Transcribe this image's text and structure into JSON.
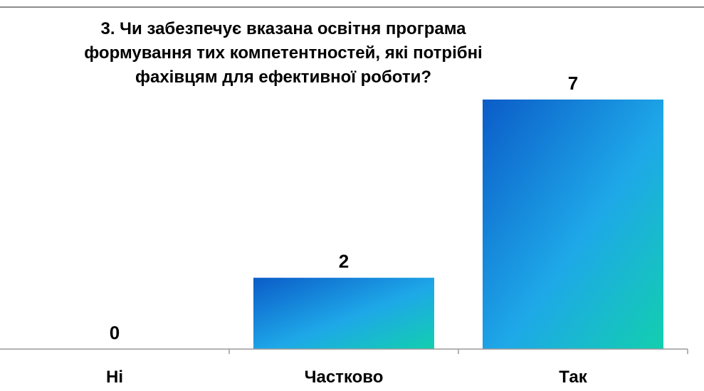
{
  "chart_data": {
    "type": "bar",
    "title_lines": [
      "3. Чи забезпечує  вказана  освітня  програма",
      "формування  тих компетентностей,  які  потрібні",
      "фахівцям  для  ефективної  роботи?"
    ],
    "categories": [
      "Ні",
      "Частково",
      "Так"
    ],
    "values": [
      0,
      2,
      7
    ],
    "data_labels": [
      "0",
      "2",
      "7"
    ],
    "ylim": [
      0,
      7
    ],
    "grid": false,
    "legend": "none",
    "colors": {
      "bar_gradient_start": "#0b5cc8",
      "bar_gradient_mid": "#1ea8e8",
      "bar_gradient_end": "#12cfae",
      "axis": "#9a9a9a",
      "top_border": "#8c8c8c"
    }
  }
}
